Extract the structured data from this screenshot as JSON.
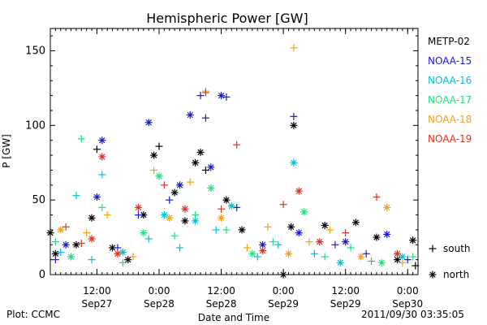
{
  "chart_data": {
    "type": "scatter",
    "title": "Hemispheric Power [GW]",
    "ylabel": "P [GW]",
    "xlabel": "Date and Time",
    "ylim": [
      0,
      165
    ],
    "yticks": [
      0,
      50,
      100,
      150
    ],
    "xlim": [
      "2011-09-27 03:00",
      "2011-09-30 02:00"
    ],
    "xticks": [
      {
        "time": "2011-09-27 12:00",
        "label1": "12:00",
        "label2": "Sep27"
      },
      {
        "time": "2011-09-28 00:00",
        "label1": "0:00",
        "label2": "Sep28"
      },
      {
        "time": "2011-09-28 12:00",
        "label1": "12:00",
        "label2": "Sep28"
      },
      {
        "time": "2011-09-29 00:00",
        "label1": "0:00",
        "label2": "Sep29"
      },
      {
        "time": "2011-09-29 12:00",
        "label1": "12:00",
        "label2": "Sep29"
      },
      {
        "time": "2011-09-30 00:00",
        "label1": "0:00",
        "label2": "Sep30"
      }
    ],
    "legend_position": "right",
    "marker_legend": [
      {
        "symbol": "+",
        "label": "south"
      },
      {
        "symbol": "*",
        "label": "north"
      }
    ],
    "series": [
      {
        "name": "METP-02",
        "color": "#000000",
        "points": [
          {
            "t": "2011-09-27 03:00",
            "y": 28,
            "m": "*"
          },
          {
            "t": "2011-09-27 04:00",
            "y": 14,
            "m": "*"
          },
          {
            "t": "2011-09-27 08:00",
            "y": 20,
            "m": "*"
          },
          {
            "t": "2011-09-27 11:00",
            "y": 38,
            "m": "*"
          },
          {
            "t": "2011-09-27 12:00",
            "y": 84,
            "m": "+"
          },
          {
            "t": "2011-09-27 15:00",
            "y": 18,
            "m": "*"
          },
          {
            "t": "2011-09-27 18:00",
            "y": 10,
            "m": "*"
          },
          {
            "t": "2011-09-27 21:00",
            "y": 40,
            "m": "*"
          },
          {
            "t": "2011-09-27 23:00",
            "y": 80,
            "m": "*"
          },
          {
            "t": "2011-09-28 00:00",
            "y": 86,
            "m": "+"
          },
          {
            "t": "2011-09-28 03:00",
            "y": 55,
            "m": "*"
          },
          {
            "t": "2011-09-28 05:00",
            "y": 36,
            "m": "*"
          },
          {
            "t": "2011-09-28 07:00",
            "y": 75,
            "m": "*"
          },
          {
            "t": "2011-09-28 08:00",
            "y": 82,
            "m": "*"
          },
          {
            "t": "2011-09-28 09:00",
            "y": 70,
            "m": "+"
          },
          {
            "t": "2011-09-28 13:00",
            "y": 50,
            "m": "*"
          },
          {
            "t": "2011-09-28 16:00",
            "y": 30,
            "m": "*"
          },
          {
            "t": "2011-09-29 00:00",
            "y": 0,
            "m": "*"
          },
          {
            "t": "2011-09-29 02:00",
            "y": 100,
            "m": "*"
          },
          {
            "t": "2011-09-29 01:30",
            "y": 32,
            "m": "*"
          },
          {
            "t": "2011-09-29 08:00",
            "y": 33,
            "m": "*"
          },
          {
            "t": "2011-09-29 14:00",
            "y": 35,
            "m": "*"
          },
          {
            "t": "2011-09-29 18:00",
            "y": 25,
            "m": "*"
          },
          {
            "t": "2011-09-29 22:00",
            "y": 10,
            "m": "*"
          },
          {
            "t": "2011-09-30 01:00",
            "y": 23,
            "m": "*"
          },
          {
            "t": "2011-09-30 01:30",
            "y": 6,
            "m": "+"
          }
        ]
      },
      {
        "name": "NOAA-15",
        "color": "#1a1ad0",
        "points": [
          {
            "t": "2011-09-27 04:00",
            "y": 10,
            "m": "+"
          },
          {
            "t": "2011-09-27 06:00",
            "y": 20,
            "m": "*"
          },
          {
            "t": "2011-09-27 12:00",
            "y": 52,
            "m": "*"
          },
          {
            "t": "2011-09-27 13:00",
            "y": 90,
            "m": "*"
          },
          {
            "t": "2011-09-27 16:00",
            "y": 18,
            "m": "+"
          },
          {
            "t": "2011-09-27 20:00",
            "y": 40,
            "m": "+"
          },
          {
            "t": "2011-09-27 22:00",
            "y": 102,
            "m": "*"
          },
          {
            "t": "2011-09-28 02:00",
            "y": 50,
            "m": "+"
          },
          {
            "t": "2011-09-28 04:00",
            "y": 60,
            "m": "*"
          },
          {
            "t": "2011-09-28 06:00",
            "y": 107,
            "m": "*"
          },
          {
            "t": "2011-09-28 08:00",
            "y": 120,
            "m": "+"
          },
          {
            "t": "2011-09-28 09:00",
            "y": 105,
            "m": "+"
          },
          {
            "t": "2011-09-28 10:00",
            "y": 72,
            "m": "*"
          },
          {
            "t": "2011-09-28 12:00",
            "y": 120,
            "m": "*"
          },
          {
            "t": "2011-09-28 13:00",
            "y": 119,
            "m": "+"
          },
          {
            "t": "2011-09-28 15:00",
            "y": 45,
            "m": "+"
          },
          {
            "t": "2011-09-28 20:00",
            "y": 20,
            "m": "*"
          },
          {
            "t": "2011-09-29 02:00",
            "y": 106,
            "m": "+"
          },
          {
            "t": "2011-09-29 03:00",
            "y": 28,
            "m": "*"
          },
          {
            "t": "2011-09-29 10:00",
            "y": 20,
            "m": "+"
          },
          {
            "t": "2011-09-29 12:00",
            "y": 22,
            "m": "*"
          },
          {
            "t": "2011-09-29 16:00",
            "y": 14,
            "m": "+"
          },
          {
            "t": "2011-09-29 20:00",
            "y": 27,
            "m": "*"
          },
          {
            "t": "2011-09-30 00:00",
            "y": 10,
            "m": "+"
          }
        ]
      },
      {
        "name": "NOAA-16",
        "color": "#00c0e0",
        "points": [
          {
            "t": "2011-09-27 05:00",
            "y": 15,
            "m": "+"
          },
          {
            "t": "2011-09-27 08:00",
            "y": 53,
            "m": "+"
          },
          {
            "t": "2011-09-27 11:00",
            "y": 10,
            "m": "+"
          },
          {
            "t": "2011-09-27 13:00",
            "y": 67,
            "m": "+"
          },
          {
            "t": "2011-09-27 17:00",
            "y": 15,
            "m": "*"
          },
          {
            "t": "2011-09-27 22:00",
            "y": 24,
            "m": "+"
          },
          {
            "t": "2011-09-28 01:00",
            "y": 40,
            "m": "*"
          },
          {
            "t": "2011-09-28 04:00",
            "y": 18,
            "m": "+"
          },
          {
            "t": "2011-09-28 07:00",
            "y": 36,
            "m": "*"
          },
          {
            "t": "2011-09-28 11:00",
            "y": 30,
            "m": "+"
          },
          {
            "t": "2011-09-28 14:00",
            "y": 46,
            "m": "*"
          },
          {
            "t": "2011-09-28 19:00",
            "y": 12,
            "m": "+"
          },
          {
            "t": "2011-09-28 23:00",
            "y": 20,
            "m": "+"
          },
          {
            "t": "2011-09-29 02:00",
            "y": 75,
            "m": "*"
          },
          {
            "t": "2011-09-29 06:00",
            "y": 14,
            "m": "+"
          },
          {
            "t": "2011-09-29 11:00",
            "y": 8,
            "m": "*"
          },
          {
            "t": "2011-09-29 17:00",
            "y": 9,
            "m": "+"
          },
          {
            "t": "2011-09-29 23:00",
            "y": 12,
            "m": "*"
          }
        ]
      },
      {
        "name": "NOAA-17",
        "color": "#20e080",
        "points": [
          {
            "t": "2011-09-27 04:00",
            "y": 22,
            "m": "+"
          },
          {
            "t": "2011-09-27 07:00",
            "y": 12,
            "m": "*"
          },
          {
            "t": "2011-09-27 09:00",
            "y": 91,
            "m": "+"
          },
          {
            "t": "2011-09-27 13:00",
            "y": 45,
            "m": "+"
          },
          {
            "t": "2011-09-27 17:00",
            "y": 8,
            "m": "+"
          },
          {
            "t": "2011-09-27 21:00",
            "y": 28,
            "m": "*"
          },
          {
            "t": "2011-09-28 00:00",
            "y": 66,
            "m": "*"
          },
          {
            "t": "2011-09-28 03:00",
            "y": 26,
            "m": "+"
          },
          {
            "t": "2011-09-28 07:00",
            "y": 40,
            "m": "+"
          },
          {
            "t": "2011-09-28 10:00",
            "y": 58,
            "m": "*"
          },
          {
            "t": "2011-09-28 13:00",
            "y": 30,
            "m": "+"
          },
          {
            "t": "2011-09-28 18:00",
            "y": 14,
            "m": "*"
          },
          {
            "t": "2011-09-28 22:00",
            "y": 22,
            "m": "+"
          },
          {
            "t": "2011-09-29 04:00",
            "y": 42,
            "m": "*"
          },
          {
            "t": "2011-09-29 08:00",
            "y": 12,
            "m": "+"
          },
          {
            "t": "2011-09-29 13:00",
            "y": 18,
            "m": "+"
          },
          {
            "t": "2011-09-29 19:00",
            "y": 8,
            "m": "*"
          },
          {
            "t": "2011-09-30 01:00",
            "y": 12,
            "m": "+"
          }
        ]
      },
      {
        "name": "NOAA-18",
        "color": "#f0a020",
        "points": [
          {
            "t": "2011-09-27 05:00",
            "y": 30,
            "m": "*"
          },
          {
            "t": "2011-09-27 10:00",
            "y": 28,
            "m": "+"
          },
          {
            "t": "2011-09-27 14:00",
            "y": 40,
            "m": "+"
          },
          {
            "t": "2011-09-27 19:00",
            "y": 12,
            "m": "+"
          },
          {
            "t": "2011-09-27 23:00",
            "y": 70,
            "m": "+"
          },
          {
            "t": "2011-09-28 02:00",
            "y": 38,
            "m": "*"
          },
          {
            "t": "2011-09-28 06:00",
            "y": 62,
            "m": "+"
          },
          {
            "t": "2011-09-28 09:00",
            "y": 123,
            "m": "+"
          },
          {
            "t": "2011-09-28 12:00",
            "y": 38,
            "m": "*"
          },
          {
            "t": "2011-09-28 17:00",
            "y": 18,
            "m": "+"
          },
          {
            "t": "2011-09-28 21:00",
            "y": 32,
            "m": "+"
          },
          {
            "t": "2011-09-29 01:00",
            "y": 14,
            "m": "*"
          },
          {
            "t": "2011-09-29 02:00",
            "y": 152,
            "m": "+"
          },
          {
            "t": "2011-09-29 05:00",
            "y": 22,
            "m": "+"
          },
          {
            "t": "2011-09-29 09:00",
            "y": 30,
            "m": "+"
          },
          {
            "t": "2011-09-29 15:00",
            "y": 12,
            "m": "*"
          },
          {
            "t": "2011-09-29 20:00",
            "y": 45,
            "m": "*"
          },
          {
            "t": "2011-09-29 23:00",
            "y": 8,
            "m": "+"
          }
        ]
      },
      {
        "name": "NOAA-19",
        "color": "#e03020",
        "points": [
          {
            "t": "2011-09-27 06:00",
            "y": 32,
            "m": "+"
          },
          {
            "t": "2011-09-27 09:00",
            "y": 21,
            "m": "+"
          },
          {
            "t": "2011-09-27 11:00",
            "y": 24,
            "m": "*"
          },
          {
            "t": "2011-09-27 13:00",
            "y": 79,
            "m": "*"
          },
          {
            "t": "2011-09-27 16:00",
            "y": 14,
            "m": "*"
          },
          {
            "t": "2011-09-27 20:00",
            "y": 45,
            "m": "*"
          },
          {
            "t": "2011-09-28 01:00",
            "y": 60,
            "m": "+"
          },
          {
            "t": "2011-09-28 05:00",
            "y": 44,
            "m": "*"
          },
          {
            "t": "2011-09-28 09:00",
            "y": 122,
            "m": "+"
          },
          {
            "t": "2011-09-28 12:00",
            "y": 44,
            "m": "+"
          },
          {
            "t": "2011-09-28 15:00",
            "y": 87,
            "m": "+"
          },
          {
            "t": "2011-09-28 20:00",
            "y": 16,
            "m": "*"
          },
          {
            "t": "2011-09-29 00:00",
            "y": 47,
            "m": "+"
          },
          {
            "t": "2011-09-29 03:00",
            "y": 56,
            "m": "*"
          },
          {
            "t": "2011-09-29 07:00",
            "y": 22,
            "m": "*"
          },
          {
            "t": "2011-09-29 12:00",
            "y": 28,
            "m": "+"
          },
          {
            "t": "2011-09-29 18:00",
            "y": 52,
            "m": "+"
          },
          {
            "t": "2011-09-29 22:00",
            "y": 14,
            "m": "*"
          }
        ]
      }
    ]
  },
  "footer": {
    "plot_credit": "Plot: CCMC",
    "timestamp": "2011/09/30 03:35:05"
  }
}
